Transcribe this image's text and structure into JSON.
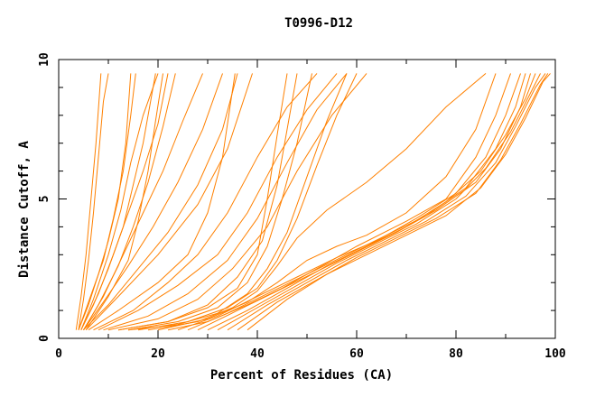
{
  "chart_data": {
    "type": "line",
    "title": "T0996-D12",
    "xlabel": "Percent of Residues (CA)",
    "ylabel": "Distance Cutoff, A",
    "xlim": [
      0,
      100
    ],
    "ylim": [
      0,
      10
    ],
    "x_ticks": [
      0,
      20,
      40,
      60,
      80,
      100
    ],
    "y_ticks": [
      0,
      5,
      10
    ],
    "x_minor_step": 10,
    "y_minor_step": 1,
    "line_color": "#ff8000",
    "grid": false,
    "series": [
      {
        "points": [
          [
            3.5,
            0.3
          ],
          [
            4.5,
            1.5
          ],
          [
            5.5,
            3
          ],
          [
            6.5,
            5
          ],
          [
            7.5,
            7
          ],
          [
            8.5,
            9.5
          ]
        ]
      },
      {
        "points": [
          [
            4,
            0.3
          ],
          [
            5,
            1.4
          ],
          [
            6,
            2.8
          ],
          [
            7,
            4.5
          ],
          [
            8,
            6.5
          ],
          [
            9,
            8.5
          ],
          [
            10,
            9.5
          ]
        ]
      },
      {
        "points": [
          [
            4,
            0.3
          ],
          [
            6,
            1.2
          ],
          [
            8,
            2.3
          ],
          [
            10,
            3.5
          ],
          [
            12,
            5
          ],
          [
            13.5,
            7
          ],
          [
            14.5,
            9.5
          ]
        ]
      },
      {
        "points": [
          [
            4,
            0.3
          ],
          [
            6,
            1.3
          ],
          [
            9,
            2.8
          ],
          [
            11,
            4.3
          ],
          [
            13,
            6
          ],
          [
            14.5,
            8
          ],
          [
            15.5,
            9.5
          ]
        ]
      },
      {
        "points": [
          [
            4.5,
            0.3
          ],
          [
            7,
            1.2
          ],
          [
            10,
            2.5
          ],
          [
            13,
            4
          ],
          [
            15,
            5.5
          ],
          [
            17,
            7
          ],
          [
            19.5,
            9.5
          ]
        ]
      },
      {
        "points": [
          [
            4.5,
            0.3
          ],
          [
            7,
            1.4
          ],
          [
            10,
            3
          ],
          [
            12.5,
            4.6
          ],
          [
            14.5,
            6.3
          ],
          [
            17,
            8
          ],
          [
            20,
            9.5
          ]
        ]
      },
      {
        "points": [
          [
            4.5,
            0.3
          ],
          [
            8,
            1.6
          ],
          [
            11,
            3
          ],
          [
            14,
            4.5
          ],
          [
            17,
            6
          ],
          [
            20,
            7.7
          ],
          [
            22,
            9.5
          ]
        ]
      },
      {
        "points": [
          [
            5,
            0.3
          ],
          [
            8,
            1.2
          ],
          [
            12,
            2.6
          ],
          [
            15,
            4
          ],
          [
            18,
            5.6
          ],
          [
            21,
            7.6
          ],
          [
            23.5,
            9.5
          ]
        ]
      },
      {
        "points": [
          [
            5,
            0.3
          ],
          [
            9,
            1.5
          ],
          [
            13,
            3
          ],
          [
            17,
            4.5
          ],
          [
            21,
            6
          ],
          [
            25,
            7.8
          ],
          [
            29,
            9.5
          ]
        ]
      },
      {
        "points": [
          [
            5,
            0.3
          ],
          [
            9,
            1.3
          ],
          [
            14,
            2.6
          ],
          [
            19,
            4
          ],
          [
            24,
            5.6
          ],
          [
            29,
            7.5
          ],
          [
            33,
            9.5
          ]
        ]
      },
      {
        "points": [
          [
            5,
            0.3
          ],
          [
            10,
            1.2
          ],
          [
            16,
            2.5
          ],
          [
            22,
            3.8
          ],
          [
            28,
            5.5
          ],
          [
            33,
            7.5
          ],
          [
            36,
            9.5
          ]
        ]
      },
      {
        "points": [
          [
            5.5,
            0.3
          ],
          [
            10,
            1.5
          ],
          [
            14,
            2.8
          ],
          [
            16,
            4.2
          ],
          [
            18,
            6
          ],
          [
            19.5,
            7.8
          ],
          [
            21,
            9.5
          ]
        ]
      },
      {
        "points": [
          [
            5.5,
            0.3
          ],
          [
            12,
            1.5
          ],
          [
            20,
            3
          ],
          [
            28,
            4.8
          ],
          [
            34,
            6.8
          ],
          [
            39,
            9.5
          ]
        ]
      },
      {
        "points": [
          [
            6,
            0.3
          ],
          [
            12,
            1
          ],
          [
            20,
            2
          ],
          [
            26,
            3
          ],
          [
            30,
            4.5
          ],
          [
            33,
            6.5
          ],
          [
            34.5,
            8.3
          ],
          [
            35.5,
            9.5
          ]
        ]
      },
      {
        "points": [
          [
            7,
            0.3
          ],
          [
            15,
            1
          ],
          [
            22,
            2
          ],
          [
            28,
            3
          ],
          [
            34,
            4.5
          ],
          [
            40,
            6.5
          ],
          [
            46,
            8.3
          ],
          [
            52,
            9.5
          ]
        ]
      },
      {
        "points": [
          [
            8,
            0.3
          ],
          [
            16,
            1
          ],
          [
            24,
            1.9
          ],
          [
            32,
            3
          ],
          [
            38,
            4.5
          ],
          [
            44,
            6.5
          ],
          [
            50,
            8.2
          ],
          [
            56,
            9.5
          ]
        ]
      },
      {
        "points": [
          [
            9,
            0.3
          ],
          [
            18,
            0.8
          ],
          [
            26,
            1.6
          ],
          [
            34,
            2.8
          ],
          [
            40,
            4.3
          ],
          [
            46,
            6.3
          ],
          [
            52,
            8.2
          ],
          [
            58,
            9.5
          ]
        ]
      },
      {
        "points": [
          [
            10,
            0.3
          ],
          [
            20,
            0.7
          ],
          [
            28,
            1.4
          ],
          [
            35,
            2.5
          ],
          [
            42,
            4
          ],
          [
            48,
            6
          ],
          [
            55,
            8
          ],
          [
            62,
            9.5
          ]
        ]
      },
      {
        "points": [
          [
            12,
            0.3
          ],
          [
            22,
            0.6
          ],
          [
            30,
            1.2
          ],
          [
            36,
            2.2
          ],
          [
            41,
            3.5
          ],
          [
            44,
            5.5
          ],
          [
            46,
            7.5
          ],
          [
            48,
            9.5
          ]
        ]
      },
      {
        "points": [
          [
            12,
            0.3
          ],
          [
            22,
            0.6
          ],
          [
            30,
            1.1
          ],
          [
            36,
            1.8
          ],
          [
            40,
            3
          ],
          [
            42,
            5
          ],
          [
            44,
            7.3
          ],
          [
            46,
            9.5
          ]
        ]
      },
      {
        "points": [
          [
            14,
            0.3
          ],
          [
            24,
            0.6
          ],
          [
            32,
            1.1
          ],
          [
            38,
            2
          ],
          [
            42,
            3.3
          ],
          [
            45,
            5
          ],
          [
            48,
            7
          ],
          [
            51,
            9.5
          ]
        ]
      },
      {
        "points": [
          [
            14,
            0.3
          ],
          [
            24,
            0.5
          ],
          [
            32,
            0.9
          ],
          [
            38,
            1.6
          ],
          [
            42,
            2.5
          ],
          [
            46,
            3.8
          ],
          [
            50,
            5.8
          ],
          [
            54,
            7.8
          ],
          [
            58,
            9.5
          ]
        ]
      },
      {
        "points": [
          [
            16,
            0.3
          ],
          [
            26,
            0.6
          ],
          [
            34,
            1.1
          ],
          [
            40,
            1.8
          ],
          [
            44,
            2.8
          ],
          [
            48,
            4.3
          ],
          [
            52,
            6.2
          ],
          [
            56,
            8
          ],
          [
            60,
            9.5
          ]
        ]
      },
      {
        "points": [
          [
            18,
            0.3
          ],
          [
            28,
            0.6
          ],
          [
            35,
            1.1
          ],
          [
            40,
            1.7
          ],
          [
            44,
            2.6
          ],
          [
            48,
            3.6
          ],
          [
            54,
            4.6
          ],
          [
            62,
            5.6
          ],
          [
            70,
            6.8
          ],
          [
            78,
            8.3
          ],
          [
            86,
            9.5
          ]
        ]
      },
      {
        "points": [
          [
            20,
            0.3
          ],
          [
            30,
            0.7
          ],
          [
            38,
            1.3
          ],
          [
            44,
            2
          ],
          [
            50,
            2.8
          ],
          [
            56,
            3.3
          ],
          [
            62,
            3.7
          ],
          [
            70,
            4.5
          ],
          [
            78,
            5.8
          ],
          [
            84,
            7.5
          ],
          [
            88,
            9.5
          ]
        ]
      },
      {
        "points": [
          [
            22,
            0.3
          ],
          [
            30,
            0.6
          ],
          [
            38,
            1.2
          ],
          [
            45,
            1.8
          ],
          [
            52,
            2.5
          ],
          [
            60,
            3.3
          ],
          [
            70,
            4.2
          ],
          [
            78,
            5
          ],
          [
            84,
            6.5
          ],
          [
            88,
            8
          ],
          [
            91,
            9.5
          ]
        ]
      },
      {
        "points": [
          [
            24,
            0.3
          ],
          [
            32,
            0.8
          ],
          [
            40,
            1.5
          ],
          [
            48,
            2.2
          ],
          [
            56,
            2.9
          ],
          [
            64,
            3.5
          ],
          [
            72,
            4.3
          ],
          [
            80,
            5.2
          ],
          [
            86,
            6.5
          ],
          [
            90,
            8
          ],
          [
            93,
            9.5
          ]
        ]
      },
      {
        "points": [
          [
            26,
            0.3
          ],
          [
            34,
            0.9
          ],
          [
            42,
            1.6
          ],
          [
            50,
            2.3
          ],
          [
            58,
            3
          ],
          [
            66,
            3.7
          ],
          [
            74,
            4.4
          ],
          [
            82,
            5.4
          ],
          [
            88,
            6.8
          ],
          [
            92,
            8.3
          ],
          [
            94,
            9.5
          ]
        ]
      },
      {
        "points": [
          [
            28,
            0.3
          ],
          [
            36,
            1
          ],
          [
            44,
            1.7
          ],
          [
            52,
            2.4
          ],
          [
            60,
            3.1
          ],
          [
            68,
            3.8
          ],
          [
            76,
            4.6
          ],
          [
            84,
            5.6
          ],
          [
            89,
            6.8
          ],
          [
            93,
            8.3
          ],
          [
            95,
            9.5
          ]
        ]
      },
      {
        "points": [
          [
            30,
            0.3
          ],
          [
            38,
            1
          ],
          [
            46,
            1.8
          ],
          [
            54,
            2.6
          ],
          [
            62,
            3.3
          ],
          [
            70,
            4
          ],
          [
            78,
            4.9
          ],
          [
            85,
            6
          ],
          [
            90,
            7.3
          ],
          [
            94,
            8.6
          ],
          [
            96,
            9.5
          ]
        ]
      },
      {
        "points": [
          [
            32,
            0.3
          ],
          [
            40,
            1.1
          ],
          [
            48,
            1.9
          ],
          [
            56,
            2.7
          ],
          [
            64,
            3.4
          ],
          [
            72,
            4.1
          ],
          [
            80,
            5
          ],
          [
            86,
            6.1
          ],
          [
            91,
            7.4
          ],
          [
            95,
            8.8
          ],
          [
            97,
            9.5
          ]
        ]
      },
      {
        "points": [
          [
            34,
            0.3
          ],
          [
            42,
            1.2
          ],
          [
            50,
            2
          ],
          [
            58,
            2.8
          ],
          [
            66,
            3.5
          ],
          [
            74,
            4.2
          ],
          [
            82,
            5.1
          ],
          [
            88,
            6.3
          ],
          [
            92,
            7.6
          ],
          [
            96,
            9
          ],
          [
            98,
            9.5
          ]
        ]
      },
      {
        "points": [
          [
            36,
            0.3
          ],
          [
            44,
            1.3
          ],
          [
            52,
            2.1
          ],
          [
            60,
            2.9
          ],
          [
            68,
            3.6
          ],
          [
            76,
            4.3
          ],
          [
            84,
            5.2
          ],
          [
            89,
            6.4
          ],
          [
            93,
            7.7
          ],
          [
            97,
            9.1
          ],
          [
            98.5,
            9.5
          ]
        ]
      },
      {
        "points": [
          [
            38,
            0.3
          ],
          [
            46,
            1.4
          ],
          [
            54,
            2.3
          ],
          [
            62,
            3
          ],
          [
            70,
            3.7
          ],
          [
            78,
            4.4
          ],
          [
            85,
            5.4
          ],
          [
            90,
            6.6
          ],
          [
            94,
            7.9
          ],
          [
            97.5,
            9.2
          ],
          [
            99,
            9.5
          ]
        ]
      }
    ]
  }
}
